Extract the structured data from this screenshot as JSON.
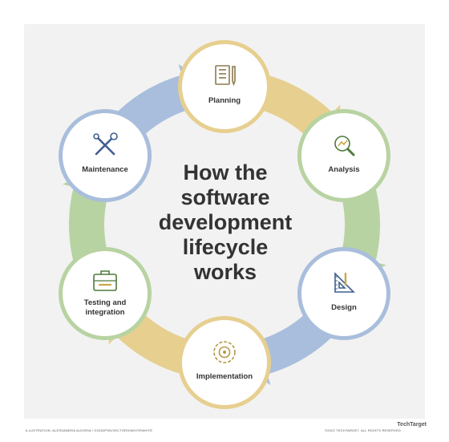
{
  "title_lines": [
    "How the",
    "software",
    "development",
    "lifecycle",
    "works"
  ],
  "stages": [
    {
      "label_lines": [
        "Planning"
      ],
      "icon": "planning-icon",
      "color": "#e6cf8f"
    },
    {
      "label_lines": [
        "Analysis"
      ],
      "icon": "analysis-icon",
      "color": "#b8d3a2"
    },
    {
      "label_lines": [
        "Design"
      ],
      "icon": "design-icon",
      "color": "#a9bedc"
    },
    {
      "label_lines": [
        "Implementation"
      ],
      "icon": "implementation-icon",
      "color": "#e6cf8f"
    },
    {
      "label_lines": [
        "Testing and",
        "integration"
      ],
      "icon": "testing-icon",
      "color": "#b8d3a2"
    },
    {
      "label_lines": [
        "Maintenance"
      ],
      "icon": "maintenance-icon",
      "color": "#a9bedc"
    }
  ],
  "icon_colors": {
    "planning": "#8a7a4e",
    "analysis": "#4f7a3c",
    "design": "#3f5f8f",
    "implementation": "#b59a45",
    "testing": "#4f7a3c",
    "maintenance": "#3f5f8f"
  },
  "footer": {
    "credit": "ILLUSTRATION: ALESSANDRA ALEGRIA / GOODPSD/VECTORS/WHITEWHITE",
    "copyright": "©2022 TECHTARGET. ALL RIGHTS RESERVED",
    "brand": "TechTarget"
  }
}
